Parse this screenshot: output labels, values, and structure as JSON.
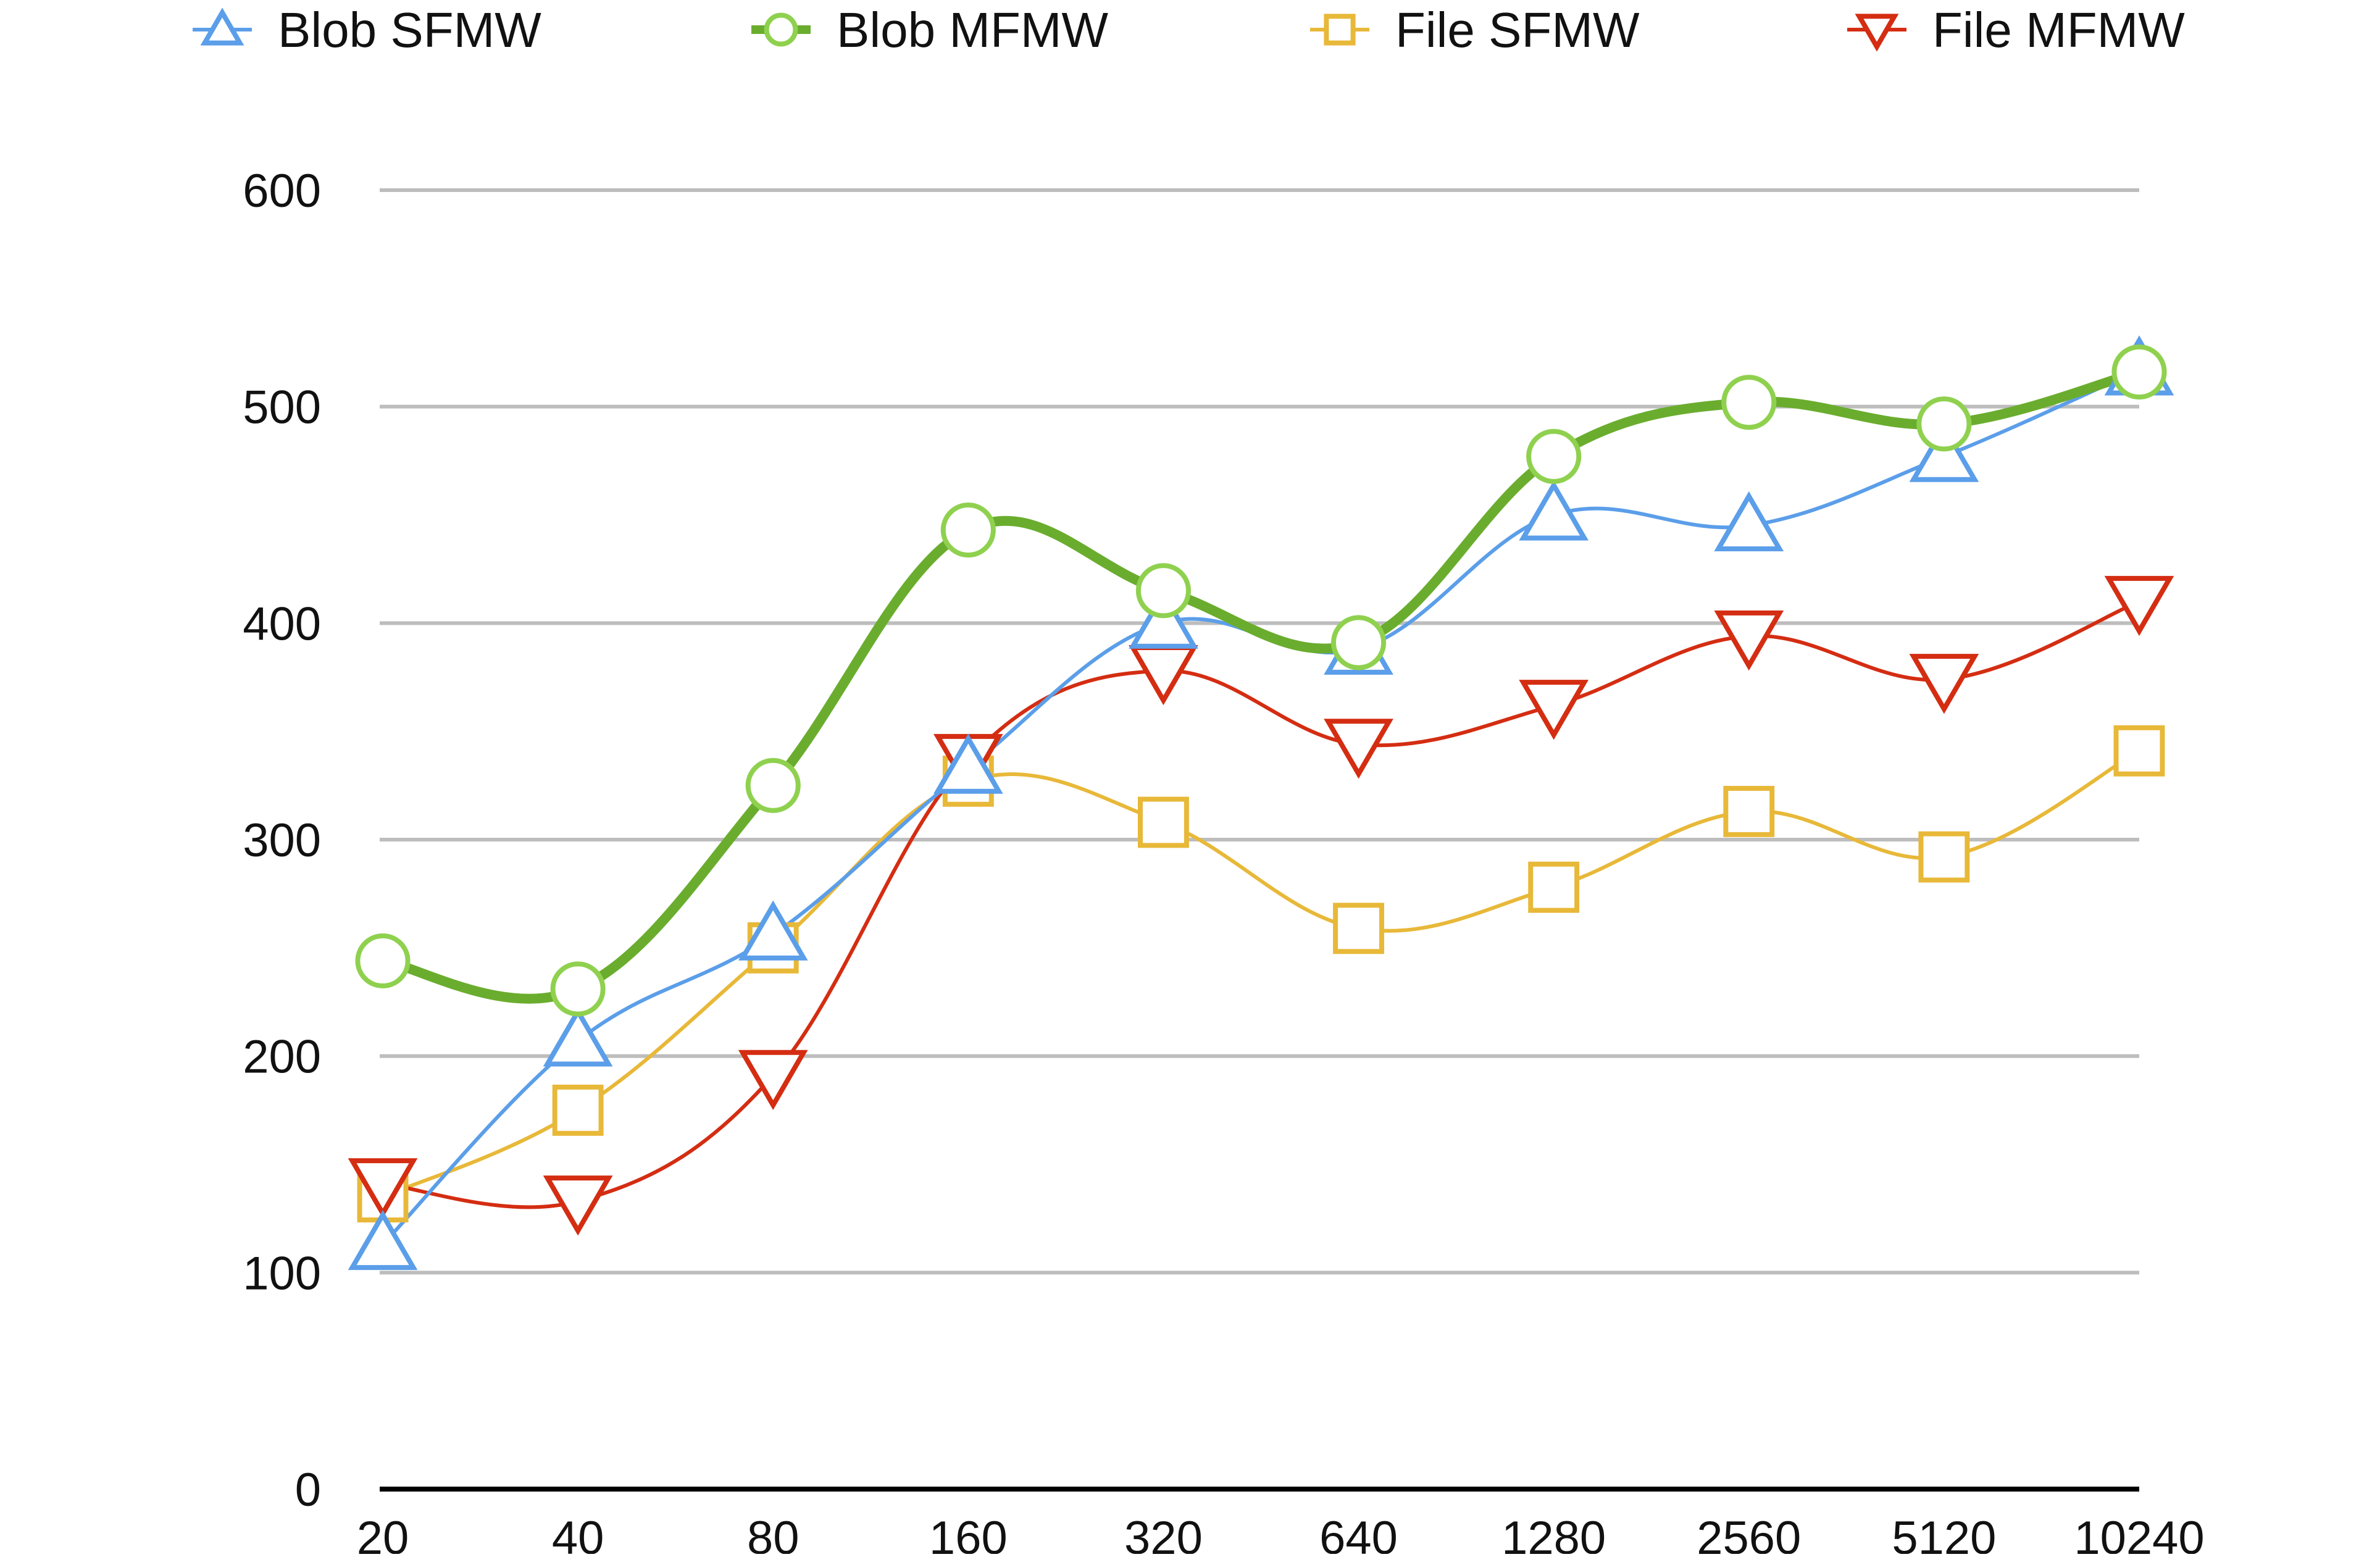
{
  "chart_data": {
    "type": "line",
    "title": "",
    "xlabel": "",
    "ylabel": "",
    "categories": [
      "20",
      "40",
      "80",
      "160",
      "320",
      "640",
      "1280",
      "2560",
      "5120",
      "10240"
    ],
    "yticks": [
      0,
      100,
      200,
      300,
      400,
      500,
      600
    ],
    "ylim": [
      0,
      600
    ],
    "grid": true,
    "legend_position": "top",
    "smooth": true,
    "series": [
      {
        "name": "Blob SFMW",
        "color": "#5b9ee9",
        "marker": "triangle-up",
        "values": [
          113,
          207,
          256,
          333,
          400,
          388,
          450,
          445,
          477,
          517
        ]
      },
      {
        "name": "Blob MFMW",
        "color": "#6aad2e",
        "marker_color": "#8fd14f",
        "marker": "circle",
        "values": [
          244,
          231,
          325,
          443,
          415,
          391,
          477,
          502,
          492,
          516
        ]
      },
      {
        "name": "File SFMW",
        "color": "#e8b838",
        "marker": "square",
        "values": [
          135,
          175,
          250,
          327,
          308,
          259,
          278,
          313,
          292,
          341
        ]
      },
      {
        "name": "File MFMW",
        "color": "#d42d12",
        "marker": "triangle-down",
        "values": [
          141,
          133,
          191,
          337,
          378,
          344,
          362,
          394,
          374,
          410
        ]
      }
    ]
  }
}
